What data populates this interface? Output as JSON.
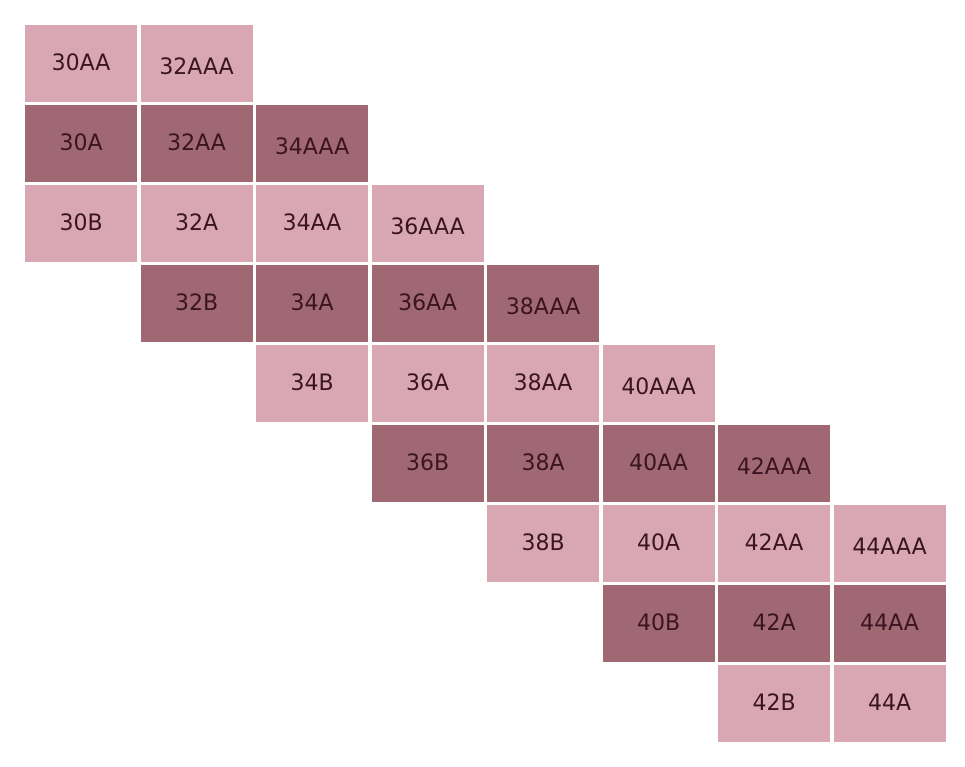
{
  "colors": {
    "light": "#d8a7b3",
    "dark": "#a06872",
    "text": "#3a1420"
  },
  "rows": [
    [
      "30AA",
      "32AAA"
    ],
    [
      "30A",
      "32AA",
      "34AAA"
    ],
    [
      "30B",
      "32A",
      "34AA",
      "36AAA"
    ],
    [
      "32B",
      "34A",
      "36AA",
      "38AAA"
    ],
    [
      "34B",
      "36A",
      "38AA",
      "40AAA"
    ],
    [
      "36B",
      "38A",
      "40AA",
      "42AAA"
    ],
    [
      "38B",
      "40A",
      "42AA",
      "44AAA"
    ],
    [
      "40B",
      "42A",
      "44AA"
    ],
    [
      "42B",
      "44A"
    ]
  ]
}
